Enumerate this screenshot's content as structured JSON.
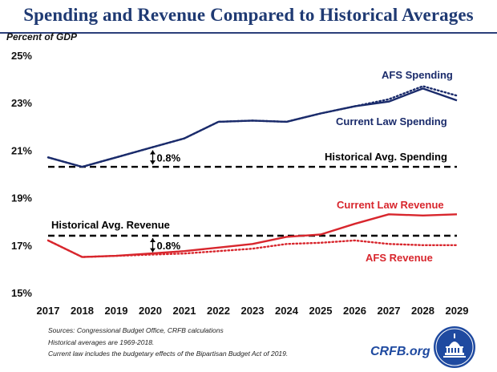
{
  "header": {
    "title": "Spending and Revenue Compared to Historical Averages"
  },
  "colors": {
    "title": "#1f3a73",
    "spending": "#1a2b6b",
    "revenue": "#d8262d",
    "baseline": "#000000",
    "brand": "#1f4aa0"
  },
  "chart_data": {
    "type": "line",
    "ylabel": "Percent of GDP",
    "ylim": [
      15,
      25
    ],
    "yticks": [
      "15%",
      "17%",
      "19%",
      "21%",
      "23%",
      "25%"
    ],
    "x": [
      "2017",
      "2018",
      "2019",
      "2020",
      "2021",
      "2022",
      "2023",
      "2024",
      "2025",
      "2026",
      "2027",
      "2028",
      "2029"
    ],
    "grid": false,
    "series": [
      {
        "name": "Current Law Spending",
        "style": "solid",
        "color": "#1a2b6b",
        "values": [
          20.7,
          20.3,
          20.7,
          21.1,
          21.5,
          22.2,
          22.25,
          22.2,
          22.55,
          22.85,
          23.05,
          23.6,
          23.1
        ]
      },
      {
        "name": "AFS Spending",
        "style": "dotted",
        "color": "#1a2b6b",
        "values": [
          20.7,
          20.3,
          20.7,
          21.1,
          21.5,
          22.2,
          22.25,
          22.2,
          22.55,
          22.85,
          23.15,
          23.7,
          23.3
        ]
      },
      {
        "name": "Historical Avg. Spending",
        "style": "dashed",
        "color": "#000000",
        "values": [
          20.3,
          20.3,
          20.3,
          20.3,
          20.3,
          20.3,
          20.3,
          20.3,
          20.3,
          20.3,
          20.3,
          20.3,
          20.3
        ]
      },
      {
        "name": "Current Law Revenue",
        "style": "solid",
        "color": "#d8262d",
        "values": [
          17.2,
          16.5,
          16.55,
          16.65,
          16.75,
          16.9,
          17.05,
          17.35,
          17.45,
          17.9,
          18.3,
          18.25,
          18.3
        ]
      },
      {
        "name": "AFS Revenue",
        "style": "dotted",
        "color": "#d8262d",
        "values": [
          17.2,
          16.5,
          16.55,
          16.6,
          16.65,
          16.75,
          16.85,
          17.05,
          17.1,
          17.2,
          17.05,
          17.0,
          17.0
        ]
      },
      {
        "name": "Historical Avg. Revenue",
        "style": "dashed",
        "color": "#000000",
        "values": [
          17.4,
          17.4,
          17.4,
          17.4,
          17.4,
          17.4,
          17.4,
          17.4,
          17.4,
          17.4,
          17.4,
          17.4,
          17.4
        ]
      }
    ],
    "annotations": [
      {
        "text": "0.8%",
        "x": "2020",
        "from": 20.3,
        "to": 21.1
      },
      {
        "text": "0.8%",
        "x": "2020",
        "from": 16.6,
        "to": 17.4
      }
    ]
  },
  "footnotes": [
    "Sources: Congressional Budget Office, CRFB calculations",
    "Historical averages are 1969-2018.",
    "Current law includes the budgetary effects of the Bipartisan Budget Act of 2019."
  ],
  "brand": {
    "name": "CRFB.org",
    "seal": "capitol-seal-icon"
  }
}
